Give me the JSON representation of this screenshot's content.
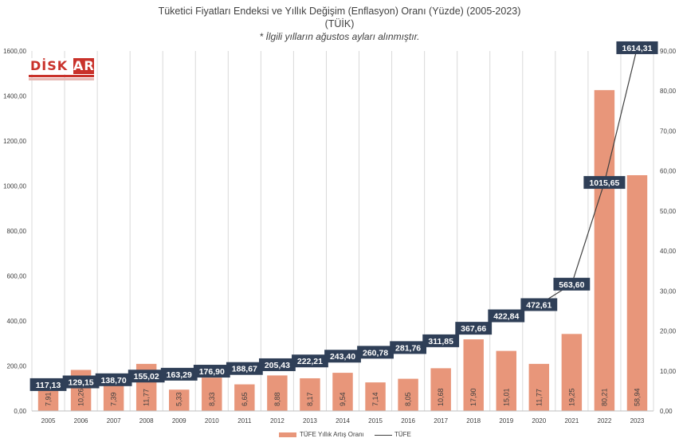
{
  "header": {
    "title": "Tüketici Fiyatları Endeksi ve Yıllık Değişim (Enflasyon) Oranı (Yüzde) (2005-2023)",
    "source": "(TÜİK)",
    "note": "* İlgili yılların ağustos ayları alınmıştır."
  },
  "logo": {
    "text_main": "DİSK",
    "text_tail": "AR"
  },
  "colors": {
    "bar": "#E8967A",
    "line": "#404040",
    "label_box": "#2F3F57",
    "grid": "#D9D9D9"
  },
  "legend": {
    "bar_label": "TÜFE Yıllık Artış Oranı",
    "line_label": "TÜFE",
    "position": "bottom"
  },
  "chart_data": {
    "type": "bar",
    "categories": [
      "2005",
      "2006",
      "2007",
      "2008",
      "2009",
      "2010",
      "2011",
      "2012",
      "2013",
      "2014",
      "2015",
      "2016",
      "2017",
      "2018",
      "2019",
      "2020",
      "2021",
      "2022",
      "2023"
    ],
    "series": [
      {
        "name": "TÜFE Yıllık Artış Oranı",
        "type": "bar",
        "axis": "right",
        "values": [
          7.91,
          10.26,
          7.39,
          11.77,
          5.33,
          8.33,
          6.65,
          8.88,
          8.17,
          9.54,
          7.14,
          8.05,
          10.68,
          17.9,
          15.01,
          11.77,
          19.25,
          80.21,
          58.94
        ],
        "labels": [
          "7,91",
          "10,26",
          "7,39",
          "11,77",
          "5,33",
          "8,33",
          "6,65",
          "8,88",
          "8,17",
          "9,54",
          "7,14",
          "8,05",
          "10,68",
          "17,90",
          "15,01",
          "11,77",
          "19,25",
          "80,21",
          "58,94"
        ]
      },
      {
        "name": "TÜFE",
        "type": "line",
        "axis": "left",
        "values": [
          117.13,
          129.15,
          138.7,
          155.02,
          163.29,
          176.9,
          188.67,
          205.43,
          222.21,
          243.4,
          260.78,
          281.76,
          311.85,
          367.66,
          422.84,
          472.61,
          563.6,
          1015.65,
          1614.31
        ],
        "labels": [
          "117,13",
          "129,15",
          "138,70",
          "155,02",
          "163,29",
          "176,90",
          "188,67",
          "205,43",
          "222,21",
          "243,40",
          "260,78",
          "281,76",
          "311,85",
          "367,66",
          "422,84",
          "472,61",
          "563,60",
          "1015,65",
          "1614,31"
        ]
      }
    ],
    "left_axis": {
      "min": 0,
      "max": 1600,
      "step": 200,
      "ticks": [
        "0,00",
        "200,00",
        "400,00",
        "600,00",
        "800,00",
        "1000,00",
        "1200,00",
        "1400,00",
        "1600,00"
      ]
    },
    "right_axis": {
      "min": 0,
      "max": 90,
      "step": 10,
      "ticks": [
        "0,00",
        "10,00",
        "20,00",
        "30,00",
        "40,00",
        "50,00",
        "60,00",
        "70,00",
        "80,00",
        "90,00"
      ]
    },
    "grid": "vertical"
  }
}
